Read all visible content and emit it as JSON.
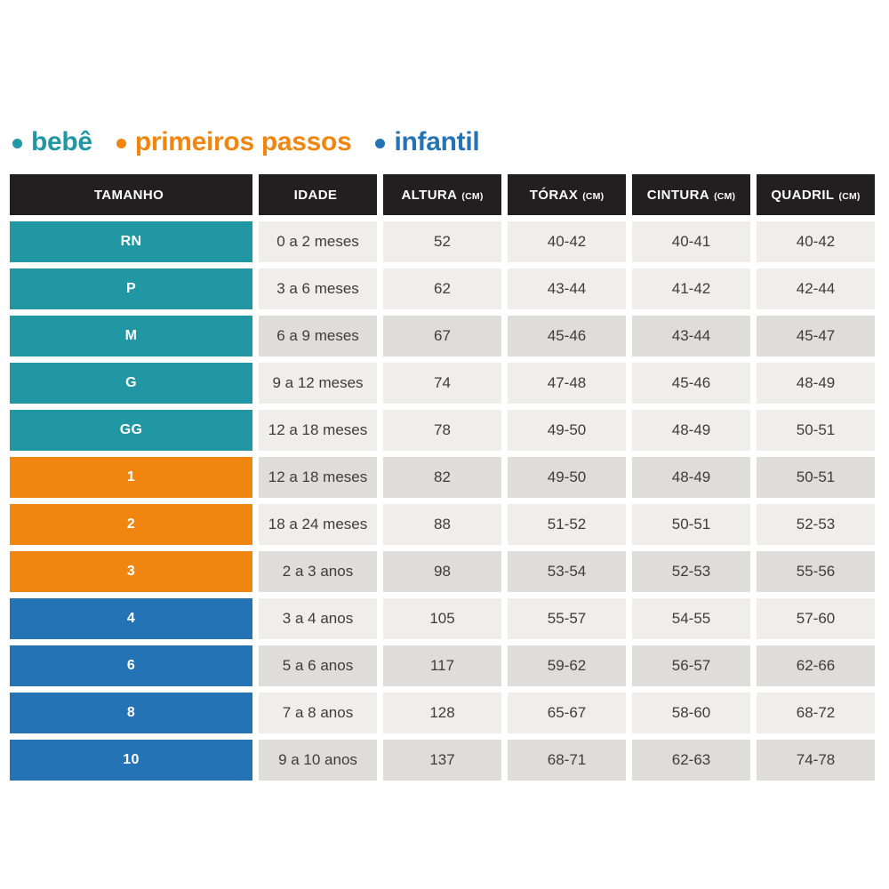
{
  "legend": {
    "bullet": "•",
    "items": [
      {
        "label": "bebê",
        "color": "#2197a4"
      },
      {
        "label": "primeiros passos",
        "color": "#f0860f"
      },
      {
        "label": "infantil",
        "color": "#2473b4"
      }
    ]
  },
  "table": {
    "headers": [
      {
        "label": "TAMANHO",
        "unit": ""
      },
      {
        "label": "IDADE",
        "unit": ""
      },
      {
        "label": "ALTURA",
        "unit": "(CM)"
      },
      {
        "label": "TÓRAX",
        "unit": "(CM)"
      },
      {
        "label": "CINTURA",
        "unit": "(CM)"
      },
      {
        "label": "QUADRIL",
        "unit": "(CM)"
      }
    ]
  },
  "chart_data": {
    "type": "table",
    "title": "",
    "columns": [
      "TAMANHO",
      "IDADE",
      "ALTURA (CM)",
      "TÓRAX (CM)",
      "CINTURA (CM)",
      "QUADRIL (CM)"
    ],
    "legend_entries": [
      "bebê",
      "primeiros passos",
      "infantil"
    ],
    "rows": [
      {
        "tamanho": "RN",
        "idade": "0 a 2 meses",
        "altura": "52",
        "torax": "40-42",
        "cintura": "40-41",
        "quadril": "40-42",
        "group": "bebe",
        "shade": "light"
      },
      {
        "tamanho": "P",
        "idade": "3 a 6 meses",
        "altura": "62",
        "torax": "43-44",
        "cintura": "41-42",
        "quadril": "42-44",
        "group": "bebe",
        "shade": "light"
      },
      {
        "tamanho": "M",
        "idade": "6 a 9 meses",
        "altura": "67",
        "torax": "45-46",
        "cintura": "43-44",
        "quadril": "45-47",
        "group": "bebe",
        "shade": "dark"
      },
      {
        "tamanho": "G",
        "idade": "9 a 12 meses",
        "altura": "74",
        "torax": "47-48",
        "cintura": "45-46",
        "quadril": "48-49",
        "group": "bebe",
        "shade": "light"
      },
      {
        "tamanho": "GG",
        "idade": "12 a 18 meses",
        "altura": "78",
        "torax": "49-50",
        "cintura": "48-49",
        "quadril": "50-51",
        "group": "bebe",
        "shade": "light"
      },
      {
        "tamanho": "1",
        "idade": "12 a 18 meses",
        "altura": "82",
        "torax": "49-50",
        "cintura": "48-49",
        "quadril": "50-51",
        "group": "passos",
        "shade": "dark"
      },
      {
        "tamanho": "2",
        "idade": "18 a 24 meses",
        "altura": "88",
        "torax": "51-52",
        "cintura": "50-51",
        "quadril": "52-53",
        "group": "passos",
        "shade": "light"
      },
      {
        "tamanho": "3",
        "idade": "2 a 3 anos",
        "altura": "98",
        "torax": "53-54",
        "cintura": "52-53",
        "quadril": "55-56",
        "group": "passos",
        "shade": "dark"
      },
      {
        "tamanho": "4",
        "idade": "3 a 4 anos",
        "altura": "105",
        "torax": "55-57",
        "cintura": "54-55",
        "quadril": "57-60",
        "group": "infantil",
        "shade": "light"
      },
      {
        "tamanho": "6",
        "idade": "5 a 6 anos",
        "altura": "117",
        "torax": "59-62",
        "cintura": "56-57",
        "quadril": "62-66",
        "group": "infantil",
        "shade": "dark"
      },
      {
        "tamanho": "8",
        "idade": "7 a 8 anos",
        "altura": "128",
        "torax": "65-67",
        "cintura": "58-60",
        "quadril": "68-72",
        "group": "infantil",
        "shade": "light"
      },
      {
        "tamanho": "10",
        "idade": "9 a 10 anos",
        "altura": "137",
        "torax": "68-71",
        "cintura": "62-63",
        "quadril": "74-78",
        "group": "infantil",
        "shade": "dark"
      }
    ]
  },
  "colors": {
    "teal": "#2197a4",
    "orange": "#f0860f",
    "blue": "#2473b4",
    "header_bg": "#211f1f",
    "header_text": "#ffffff",
    "cell_light": "#efeeec",
    "cell_dark": "#dedddb",
    "cell_text": "#3d3d3d",
    "background": "#ffffff"
  },
  "group_color_keys": {
    "bebe": "teal",
    "passos": "orange",
    "infantil": "blue"
  }
}
